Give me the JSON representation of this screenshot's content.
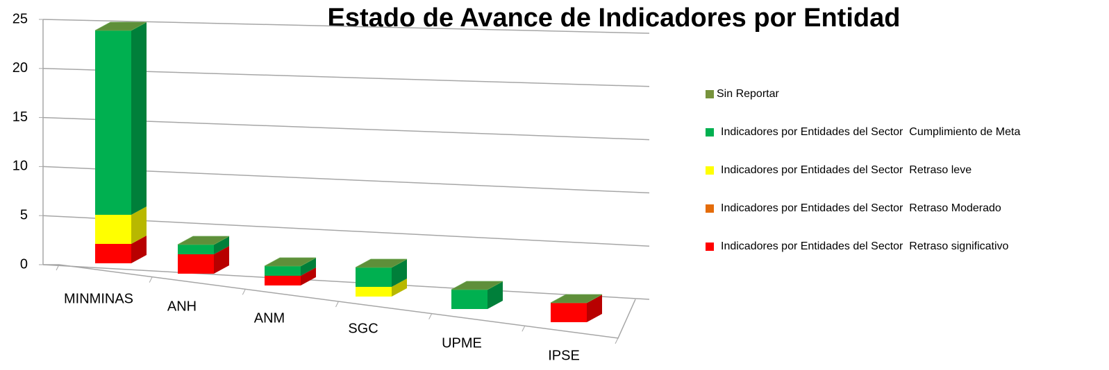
{
  "chart_data": {
    "type": "bar3d_stacked",
    "title": "Estado de Avance de Indicadores por Entidad",
    "categories": [
      "MINMINAS",
      "ANH",
      "ANM",
      "SGC",
      "UPME",
      "IPSE"
    ],
    "series": [
      {
        "name": "Indicadores por Entidades del Sector  Retraso significativo",
        "color": "#ff0000",
        "values": [
          2,
          2,
          1,
          0,
          0,
          2
        ]
      },
      {
        "name": "Indicadores por Entidades del Sector  Retraso Moderado",
        "color": "#e46c0a",
        "values": [
          0,
          0,
          0,
          0,
          0,
          0
        ]
      },
      {
        "name": "Indicadores por Entidades del Sector  Retraso leve",
        "color": "#ffff00",
        "values": [
          3,
          0,
          0,
          1,
          0,
          0
        ]
      },
      {
        "name": "Indicadores por Entidades del Sector  Cumplimiento de Meta",
        "color": "#00b050",
        "values": [
          19,
          1,
          1,
          2,
          2,
          0
        ]
      },
      {
        "name": "Sin Reportar",
        "color": "#77933c",
        "values": [
          0,
          0,
          0,
          0,
          0,
          0
        ]
      }
    ],
    "ylim": [
      0,
      25
    ],
    "yticks": [
      0,
      5,
      10,
      15,
      20,
      25
    ],
    "grid": true
  }
}
